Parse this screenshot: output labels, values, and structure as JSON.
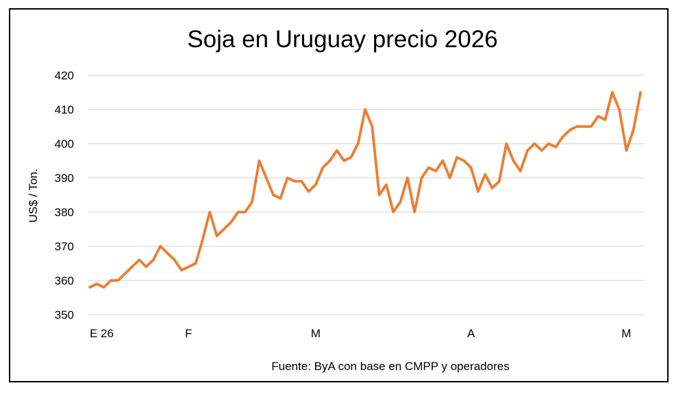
{
  "chart_data": {
    "type": "line",
    "title": "Soja en Uruguay precio 2026",
    "xlabel": "",
    "ylabel": "US$ / Ton.",
    "source": "Fuente: ByA con base en CMPP y operadores",
    "ylim": [
      350,
      420
    ],
    "yticks": [
      350,
      360,
      370,
      380,
      390,
      400,
      410,
      420
    ],
    "grid": true,
    "legend": "none",
    "x_ticks": [
      {
        "label": "E 26",
        "index": 0
      },
      {
        "label": "F",
        "index": 14
      },
      {
        "label": "M",
        "index": 32
      },
      {
        "label": "A",
        "index": 54
      },
      {
        "label": "M",
        "index": 76
      }
    ],
    "series": [
      {
        "color": "#ED7D31",
        "values": [
          358,
          359,
          358,
          360,
          360,
          362,
          364,
          366,
          364,
          366,
          370,
          368,
          366,
          363,
          364,
          365,
          372,
          380,
          373,
          375,
          377,
          380,
          380,
          383,
          395,
          390,
          385,
          384,
          390,
          389,
          389,
          386,
          388,
          393,
          395,
          398,
          395,
          396,
          400,
          410,
          405,
          385,
          388,
          380,
          383,
          390,
          380,
          390,
          393,
          392,
          395,
          390,
          396,
          395,
          393,
          386,
          391,
          387,
          389,
          400,
          395,
          392,
          398,
          400,
          398,
          400,
          399,
          402,
          404,
          405,
          405,
          405,
          408,
          407,
          415,
          410,
          398,
          404,
          415
        ]
      }
    ]
  }
}
